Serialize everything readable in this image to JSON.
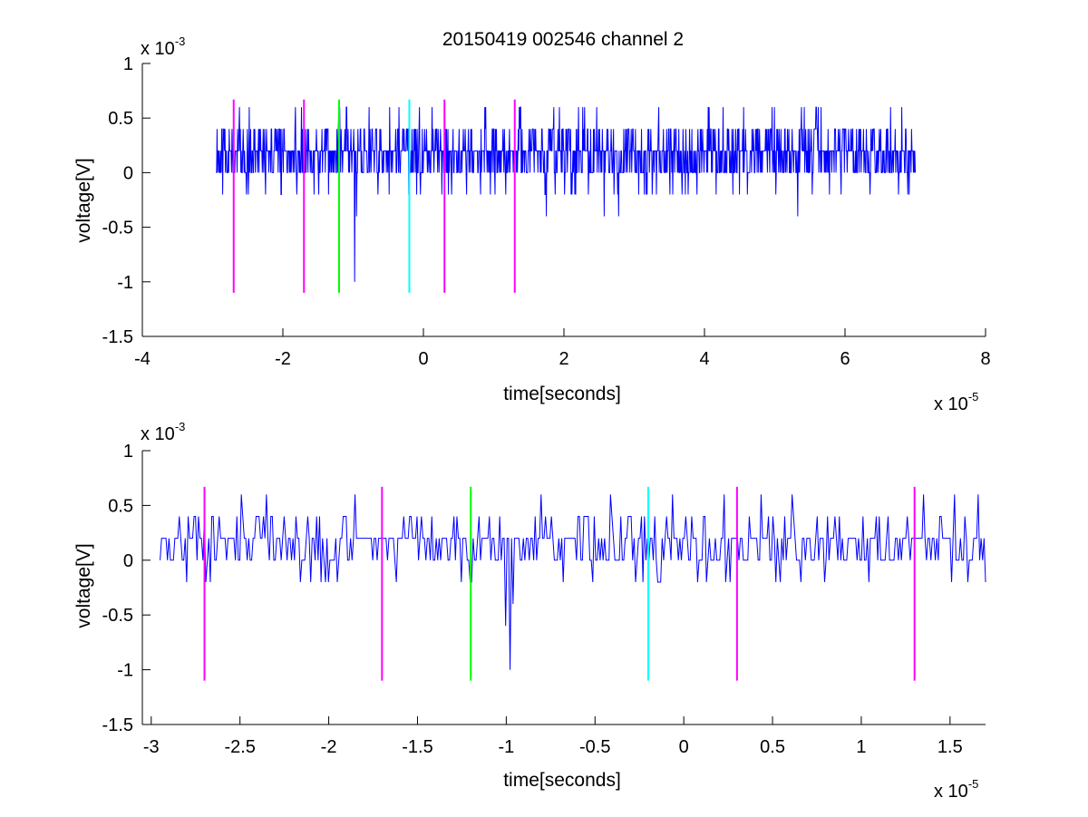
{
  "figure": {
    "title": "20150419 002546 channel 2",
    "background": "#ffffff",
    "colors": {
      "signal": "#0000ff",
      "magenta": "#ff00ff",
      "green": "#00ff00",
      "cyan": "#00ffff",
      "axis": "#000000"
    }
  },
  "chart_data": [
    {
      "type": "line",
      "title": "20150419 002546 channel 2",
      "xlabel": "time[seconds]",
      "ylabel": "voltage[V]",
      "x_multiplier": "x 10",
      "x_multiplier_exp": "-5",
      "y_multiplier": "x 10",
      "y_multiplier_exp": "-3",
      "xlim": [
        -4,
        8
      ],
      "ylim": [
        -1.5,
        1
      ],
      "xticks": [
        -4,
        -2,
        0,
        2,
        4,
        6,
        8
      ],
      "xtick_labels": [
        "-4",
        "-2",
        "0",
        "2",
        "4",
        "6",
        "8"
      ],
      "yticks": [
        -1.5,
        -1,
        -0.5,
        0,
        0.5,
        1
      ],
      "ytick_labels": [
        "-1.5",
        "-1",
        "-0.5",
        "0",
        "0.5",
        "1"
      ],
      "grid": false,
      "series": [
        {
          "color": "#0000ff",
          "x_range": [
            -2.95,
            7.0
          ],
          "baseline": 0.2,
          "step": 0.2,
          "samples": 1500,
          "seed": 11,
          "dips": [
            [
              -0.98,
              -1.0
            ],
            [
              -0.95,
              -0.4
            ],
            [
              -1.35,
              -0.2
            ],
            [
              2.57,
              -0.4
            ],
            [
              5.33,
              -0.4
            ],
            [
              2.78,
              -0.4
            ],
            [
              1.75,
              -0.4
            ]
          ],
          "peaks": [
            [
              -2.62,
              0.6
            ],
            [
              -1.82,
              0.6
            ],
            [
              -1.1,
              0.6
            ],
            [
              0.3,
              0.6
            ],
            [
              1.38,
              0.6
            ],
            [
              2.57,
              0.6
            ],
            [
              3.35,
              0.6
            ],
            [
              4.05,
              0.6
            ],
            [
              5.38,
              0.6
            ],
            [
              6.65,
              0.6
            ],
            [
              -0.77,
              0.6
            ]
          ]
        }
      ],
      "vlines": [
        {
          "x": -2.7,
          "ymin": -1.1,
          "ymax": 0.67,
          "color": "#ff00ff"
        },
        {
          "x": -1.7,
          "ymin": -1.1,
          "ymax": 0.67,
          "color": "#ff00ff"
        },
        {
          "x": -1.2,
          "ymin": -1.1,
          "ymax": 0.67,
          "color": "#00ff00"
        },
        {
          "x": -0.2,
          "ymin": -1.1,
          "ymax": 0.67,
          "color": "#00ffff"
        },
        {
          "x": 0.3,
          "ymin": -1.1,
          "ymax": 0.67,
          "color": "#ff00ff"
        },
        {
          "x": 1.3,
          "ymin": -1.1,
          "ymax": 0.67,
          "color": "#ff00ff"
        }
      ]
    },
    {
      "type": "line",
      "xlabel": "time[seconds]",
      "ylabel": "voltage[V]",
      "x_multiplier": "x 10",
      "x_multiplier_exp": "-5",
      "y_multiplier": "x 10",
      "y_multiplier_exp": "-3",
      "xlim": [
        -3.05,
        1.7
      ],
      "ylim": [
        -1.5,
        1
      ],
      "xticks": [
        -3,
        -2.5,
        -2,
        -1.5,
        -1,
        -0.5,
        0,
        0.5,
        1,
        1.5
      ],
      "xtick_labels": [
        "-3",
        "-2.5",
        "-2",
        "-1.5",
        "-1",
        "-0.5",
        "0",
        "0.5",
        "1",
        "1.5"
      ],
      "yticks": [
        -1.5,
        -1,
        -0.5,
        0,
        0.5,
        1
      ],
      "ytick_labels": [
        "-1.5",
        "-1",
        "-0.5",
        "0",
        "0.5",
        "1"
      ],
      "grid": false,
      "series": [
        {
          "color": "#0000ff",
          "x_range": [
            -2.95,
            1.7
          ],
          "baseline": 0.2,
          "step": 0.2,
          "samples": 560,
          "seed": 29,
          "dips": [
            [
              -0.98,
              -1.0
            ],
            [
              -1.0,
              -0.6
            ],
            [
              -0.96,
              -0.4
            ],
            [
              -2.8,
              -0.2
            ],
            [
              -1.95,
              -0.2
            ],
            [
              -1.25,
              -0.2
            ]
          ],
          "peaks": [
            [
              -1.85,
              0.6
            ],
            [
              -0.8,
              0.6
            ],
            [
              0.23,
              0.6
            ],
            [
              1.35,
              0.6
            ],
            [
              -0.1,
              0.4
            ],
            [
              -1.15,
              0.4
            ],
            [
              1.1,
              0.4
            ],
            [
              0.75,
              0.4
            ]
          ]
        }
      ],
      "vlines": [
        {
          "x": -2.7,
          "ymin": -1.1,
          "ymax": 0.67,
          "color": "#ff00ff"
        },
        {
          "x": -1.7,
          "ymin": -1.1,
          "ymax": 0.67,
          "color": "#ff00ff"
        },
        {
          "x": -1.2,
          "ymin": -1.1,
          "ymax": 0.67,
          "color": "#00ff00"
        },
        {
          "x": -0.2,
          "ymin": -1.1,
          "ymax": 0.67,
          "color": "#00ffff"
        },
        {
          "x": 0.3,
          "ymin": -1.1,
          "ymax": 0.67,
          "color": "#ff00ff"
        },
        {
          "x": 1.3,
          "ymin": -1.1,
          "ymax": 0.67,
          "color": "#ff00ff"
        }
      ]
    }
  ]
}
